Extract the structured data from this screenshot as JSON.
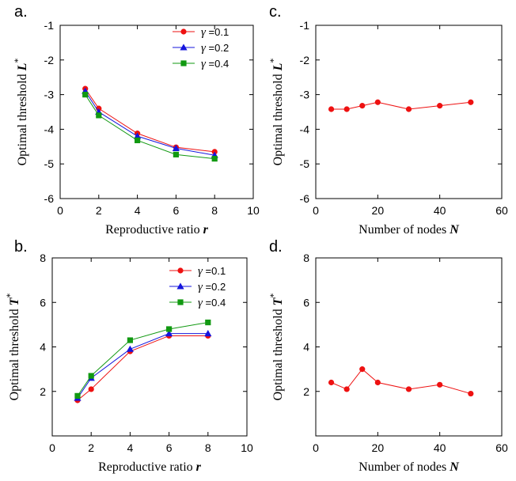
{
  "chart_data": [
    {
      "panel": "a.",
      "type": "line",
      "xlabel": "Reproductive ratio ",
      "xlabel_var": "r",
      "ylabel": "Optimal threshold ",
      "ylabel_var": "L",
      "ylabel_sup": "*",
      "xlim": [
        0,
        10
      ],
      "ylim": [
        -6,
        -1
      ],
      "xticks": [
        0,
        2,
        4,
        6,
        8,
        10
      ],
      "yticks": [
        -6,
        -5,
        -4,
        -3,
        -2,
        -1
      ],
      "legend_position": "top-right",
      "x": [
        1.3,
        2,
        4,
        6,
        8
      ],
      "series": [
        {
          "name": "γ =0.1",
          "legend_var": "γ",
          "legend_val": " =0.1",
          "color": "#ee1111",
          "marker": "circle",
          "values": [
            -2.83,
            -3.4,
            -4.12,
            -4.52,
            -4.65
          ]
        },
        {
          "name": "γ =0.2",
          "legend_var": "γ",
          "legend_val": " =0.2",
          "color": "#1515dd",
          "marker": "triangle",
          "values": [
            -2.9,
            -3.5,
            -4.2,
            -4.55,
            -4.75
          ]
        },
        {
          "name": "γ =0.4",
          "legend_var": "γ",
          "legend_val": " =0.4",
          "color": "#119911",
          "marker": "square",
          "values": [
            -3.0,
            -3.6,
            -4.32,
            -4.73,
            -4.85
          ]
        }
      ]
    },
    {
      "panel": "b.",
      "type": "line",
      "xlabel": "Reproductive ratio ",
      "xlabel_var": "r",
      "ylabel": "Optimal threshold ",
      "ylabel_var": "T",
      "ylabel_sup": "*",
      "xlim": [
        0,
        10
      ],
      "ylim": [
        0,
        8
      ],
      "xticks": [
        0,
        2,
        4,
        6,
        8,
        10
      ],
      "yticks": [
        2,
        4,
        6,
        8
      ],
      "legend_position": "top-right",
      "x": [
        1.3,
        2,
        4,
        6,
        8
      ],
      "series": [
        {
          "name": "γ =0.1",
          "legend_var": "γ",
          "legend_val": " =0.1",
          "color": "#ee1111",
          "marker": "circle",
          "values": [
            1.6,
            2.1,
            3.8,
            4.5,
            4.5
          ]
        },
        {
          "name": "γ =0.2",
          "legend_var": "γ",
          "legend_val": " =0.2",
          "color": "#1515dd",
          "marker": "triangle",
          "values": [
            1.7,
            2.6,
            3.9,
            4.6,
            4.6
          ]
        },
        {
          "name": "γ =0.4",
          "legend_var": "γ",
          "legend_val": " =0.4",
          "color": "#119911",
          "marker": "square",
          "values": [
            1.8,
            2.7,
            4.3,
            4.8,
            5.1
          ]
        }
      ]
    },
    {
      "panel": "c.",
      "type": "line",
      "xlabel": "Number of nodes ",
      "xlabel_var": "N",
      "ylabel": "Optimal threshold ",
      "ylabel_var": "L",
      "ylabel_sup": "*",
      "xlim": [
        0,
        60
      ],
      "ylim": [
        -6,
        -1
      ],
      "xticks": [
        0,
        20,
        40,
        60
      ],
      "yticks": [
        -6,
        -5,
        -4,
        -3,
        -2,
        -1
      ],
      "x": [
        5,
        10,
        15,
        20,
        30,
        40,
        50
      ],
      "series": [
        {
          "color": "#ee1111",
          "marker": "circle",
          "values": [
            -3.42,
            -3.42,
            -3.32,
            -3.22,
            -3.42,
            -3.32,
            -3.22
          ]
        }
      ]
    },
    {
      "panel": "d.",
      "type": "line",
      "xlabel": "Number of nodes ",
      "xlabel_var": "N",
      "ylabel": "Optimal threshold ",
      "ylabel_var": "T",
      "ylabel_sup": "*",
      "xlim": [
        0,
        60
      ],
      "ylim": [
        0,
        8
      ],
      "xticks": [
        0,
        20,
        40,
        60
      ],
      "yticks": [
        2,
        4,
        6,
        8
      ],
      "x": [
        5,
        10,
        15,
        20,
        30,
        40,
        50
      ],
      "series": [
        {
          "color": "#ee1111",
          "marker": "circle",
          "values": [
            2.4,
            2.1,
            3.0,
            2.4,
            2.1,
            2.3,
            1.9
          ]
        }
      ]
    }
  ]
}
